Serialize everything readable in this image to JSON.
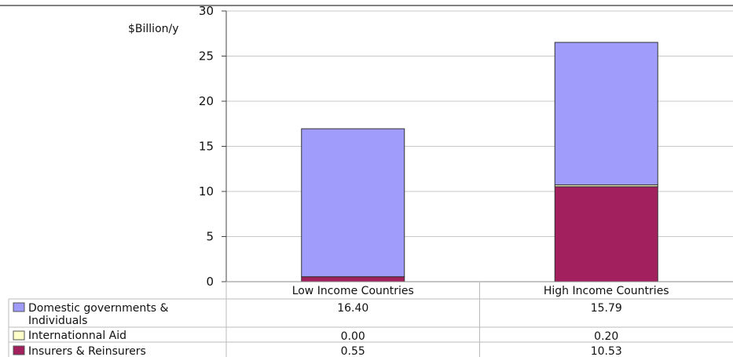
{
  "chart_data": {
    "type": "bar",
    "stacked": true,
    "ylabel": "$Billion/y",
    "ylim": [
      0,
      30
    ],
    "yticks": [
      0,
      5,
      10,
      15,
      20,
      25,
      30
    ],
    "grid": true,
    "legend_placement": "table-below",
    "categories": [
      "Low Income Countries",
      "High Income Countries"
    ],
    "series": [
      {
        "name": "Insurers & Reinsurers",
        "values": [
          0.55,
          10.53
        ],
        "labels": [
          "0.55",
          "10.53"
        ],
        "color": "#a3205e"
      },
      {
        "name": "Internationnal Aid",
        "values": [
          0.0,
          0.2
        ],
        "labels": [
          "0.00",
          "0.20"
        ],
        "color": "#ffffc8"
      },
      {
        "name": "Domestic governments & Individuals",
        "name_lines": [
          "Domestic governments &",
          "Individuals"
        ],
        "values": [
          16.4,
          15.79
        ],
        "labels": [
          "16.40",
          "15.79"
        ],
        "color": "#a09cfc"
      }
    ],
    "table_row_order": [
      2,
      1,
      0
    ]
  }
}
